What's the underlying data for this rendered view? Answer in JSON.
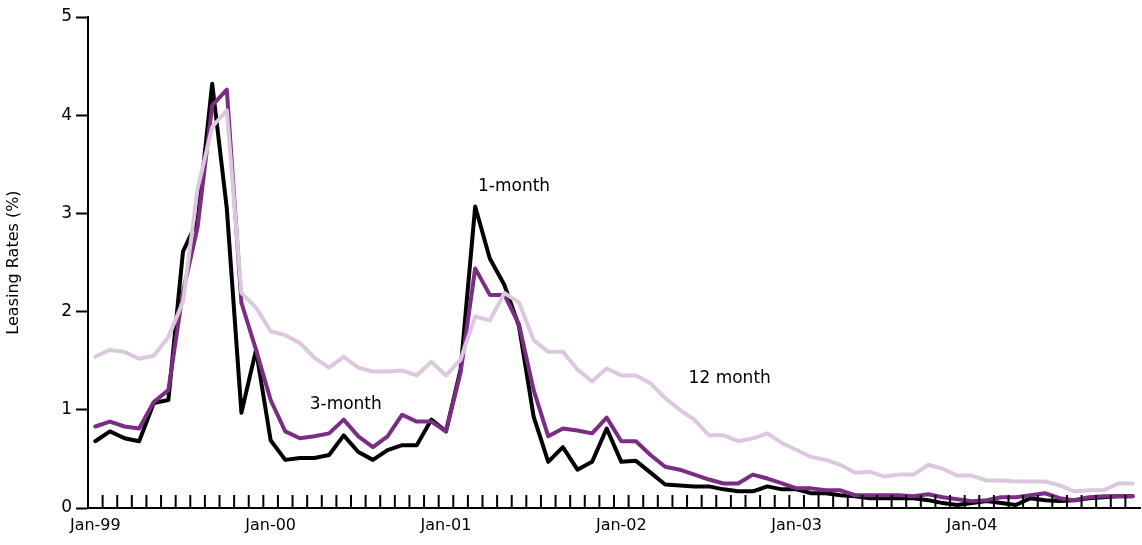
{
  "chart_data": {
    "type": "line",
    "ylabel": "Leasing Rates (%)",
    "categories": [
      "Jan-99",
      null,
      null,
      null,
      null,
      null,
      null,
      null,
      null,
      null,
      null,
      null,
      "Jan-00",
      null,
      null,
      null,
      null,
      null,
      null,
      null,
      null,
      null,
      null,
      null,
      "Jan-01",
      null,
      null,
      null,
      null,
      null,
      null,
      null,
      null,
      null,
      null,
      null,
      "Jan-02",
      null,
      null,
      null,
      null,
      null,
      null,
      null,
      null,
      null,
      null,
      null,
      "Jan-03",
      null,
      null,
      null,
      null,
      null,
      null,
      null,
      null,
      null,
      null,
      null,
      "Jan-04",
      null,
      null,
      null,
      null,
      null,
      null,
      null,
      null,
      null,
      null,
      null
    ],
    "ylim": [
      0,
      5
    ],
    "yticks": [
      0,
      1,
      2,
      3,
      4,
      5
    ],
    "grid": false,
    "legend": false,
    "marker": "none",
    "line_style": "solid",
    "series": [
      {
        "name": "12 month",
        "color": "#dcc8de",
        "values": [
          1.54,
          1.61,
          1.59,
          1.52,
          1.55,
          1.74,
          2.1,
          3.25,
          3.88,
          4.05,
          2.19,
          2.04,
          1.8,
          1.76,
          1.68,
          1.53,
          1.43,
          1.54,
          1.43,
          1.39,
          1.39,
          1.4,
          1.35,
          1.49,
          1.35,
          1.51,
          1.95,
          1.91,
          2.19,
          2.09,
          1.71,
          1.59,
          1.59,
          1.41,
          1.29,
          1.42,
          1.35,
          1.35,
          1.27,
          1.12,
          1.0,
          0.9,
          0.74,
          0.74,
          0.68,
          0.71,
          0.76,
          0.66,
          0.59,
          0.52,
          0.49,
          0.44,
          0.36,
          0.37,
          0.32,
          0.34,
          0.34,
          0.44,
          0.4,
          0.33,
          0.33,
          0.28,
          0.28,
          0.27,
          0.27,
          0.27,
          0.23,
          0.17,
          0.18,
          0.18,
          0.25,
          0.25
        ]
      },
      {
        "name": "3-month",
        "color": "#7b2d84",
        "values": [
          0.83,
          0.88,
          0.83,
          0.81,
          1.08,
          1.2,
          2.2,
          2.86,
          4.1,
          4.26,
          2.09,
          1.61,
          1.1,
          0.78,
          0.71,
          0.73,
          0.76,
          0.9,
          0.73,
          0.62,
          0.73,
          0.95,
          0.88,
          0.88,
          0.78,
          1.38,
          2.44,
          2.17,
          2.17,
          1.87,
          1.2,
          0.73,
          0.81,
          0.79,
          0.76,
          0.92,
          0.68,
          0.68,
          0.54,
          0.42,
          0.39,
          0.34,
          0.29,
          0.25,
          0.25,
          0.34,
          0.3,
          0.25,
          0.2,
          0.2,
          0.18,
          0.18,
          0.13,
          0.13,
          0.13,
          0.13,
          0.12,
          0.14,
          0.11,
          0.09,
          0.07,
          0.08,
          0.11,
          0.11,
          0.13,
          0.15,
          0.1,
          0.08,
          0.11,
          0.12,
          0.12,
          0.12
        ]
      },
      {
        "name": "1-month",
        "color": "#000000",
        "values": [
          0.68,
          0.78,
          0.71,
          0.68,
          1.07,
          1.1,
          2.61,
          2.93,
          4.32,
          3.05,
          0.97,
          1.61,
          0.69,
          0.49,
          0.51,
          0.51,
          0.54,
          0.74,
          0.57,
          0.49,
          0.59,
          0.64,
          0.64,
          0.9,
          0.78,
          1.41,
          3.07,
          2.54,
          2.27,
          1.85,
          0.93,
          0.47,
          0.62,
          0.39,
          0.47,
          0.81,
          0.47,
          0.48,
          0.36,
          0.24,
          0.23,
          0.22,
          0.22,
          0.19,
          0.17,
          0.17,
          0.22,
          0.19,
          0.19,
          0.15,
          0.15,
          0.13,
          0.12,
          0.1,
          0.1,
          0.1,
          0.1,
          0.08,
          0.05,
          0.03,
          0.05,
          0.07,
          0.05,
          0.03,
          0.1,
          0.08,
          0.07,
          0.08,
          0.1,
          0.11,
          0.12,
          0.12
        ]
      }
    ]
  }
}
